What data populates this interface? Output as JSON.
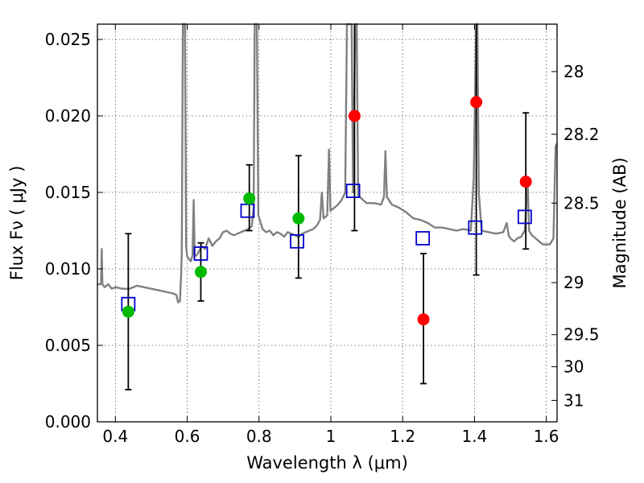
{
  "chart_data": {
    "type": "scatter",
    "title": "",
    "xlabel": "Wavelength  λ (μm)",
    "ylabel": "Flux  Fν  ( μJy )",
    "ylabel_right": "Magnitude (AB)",
    "xlim": [
      0.35,
      1.63
    ],
    "ylim": [
      0.0,
      0.026
    ],
    "grid": true,
    "x_ticks": [
      0.4,
      0.6,
      0.8,
      1.0,
      1.2,
      1.4,
      1.6
    ],
    "x_tick_labels": [
      "0.4",
      "0.6",
      "0.8",
      "1",
      "1.2",
      "1.4",
      "1.6"
    ],
    "y_ticks": [
      0.0,
      0.005,
      0.01,
      0.015,
      0.02,
      0.025
    ],
    "y_tick_labels": [
      "0.000",
      "0.005",
      "0.010",
      "0.015",
      "0.020",
      "0.025"
    ],
    "right_ticks": [
      {
        "label": "28",
        "flux": 0.0229
      },
      {
        "label": "28.2",
        "flux": 0.0188
      },
      {
        "label": "28.5",
        "flux": 0.0143
      },
      {
        "label": "29",
        "flux": 0.0091
      },
      {
        "label": "29.5",
        "flux": 0.0057
      },
      {
        "label": "30",
        "flux": 0.0036
      },
      {
        "label": "31",
        "flux": 0.0014
      }
    ],
    "colors": {
      "spectrum": "#808080",
      "model": "#0000cc",
      "green": "#00bb00",
      "red": "#ff0000",
      "errorbar": "#000000",
      "grid": "#555555"
    },
    "series": [
      {
        "role": "spectrum",
        "points": [
          [
            0.35,
            0.009
          ],
          [
            0.36,
            0.009
          ],
          [
            0.362,
            0.0113
          ],
          [
            0.364,
            0.009
          ],
          [
            0.37,
            0.0088
          ],
          [
            0.38,
            0.009
          ],
          [
            0.39,
            0.0087
          ],
          [
            0.4,
            0.0088
          ],
          [
            0.42,
            0.0087
          ],
          [
            0.44,
            0.0087
          ],
          [
            0.46,
            0.0089
          ],
          [
            0.48,
            0.0088
          ],
          [
            0.5,
            0.0087
          ],
          [
            0.52,
            0.0086
          ],
          [
            0.54,
            0.0085
          ],
          [
            0.56,
            0.0084
          ],
          [
            0.57,
            0.0083
          ],
          [
            0.575,
            0.0078
          ],
          [
            0.58,
            0.0079
          ],
          [
            0.583,
            0.0095
          ],
          [
            0.585,
            0.011
          ],
          [
            0.588,
            0.026
          ],
          [
            0.594,
            0.026
          ],
          [
            0.597,
            0.0115
          ],
          [
            0.6,
            0.0108
          ],
          [
            0.61,
            0.0105
          ],
          [
            0.615,
            0.0109
          ],
          [
            0.618,
            0.0145
          ],
          [
            0.621,
            0.0108
          ],
          [
            0.63,
            0.011
          ],
          [
            0.64,
            0.0115
          ],
          [
            0.65,
            0.0113
          ],
          [
            0.66,
            0.012
          ],
          [
            0.67,
            0.0115
          ],
          [
            0.68,
            0.0118
          ],
          [
            0.69,
            0.012
          ],
          [
            0.7,
            0.0124
          ],
          [
            0.71,
            0.0125
          ],
          [
            0.72,
            0.0123
          ],
          [
            0.73,
            0.0122
          ],
          [
            0.74,
            0.0123
          ],
          [
            0.75,
            0.0124
          ],
          [
            0.76,
            0.0125
          ],
          [
            0.77,
            0.0126
          ],
          [
            0.78,
            0.0128
          ],
          [
            0.785,
            0.014
          ],
          [
            0.788,
            0.026
          ],
          [
            0.794,
            0.026
          ],
          [
            0.798,
            0.0135
          ],
          [
            0.81,
            0.0126
          ],
          [
            0.82,
            0.0124
          ],
          [
            0.83,
            0.0125
          ],
          [
            0.84,
            0.0122
          ],
          [
            0.85,
            0.0124
          ],
          [
            0.86,
            0.0123
          ],
          [
            0.87,
            0.0121
          ],
          [
            0.88,
            0.0124
          ],
          [
            0.89,
            0.0123
          ],
          [
            0.9,
            0.0122
          ],
          [
            0.91,
            0.0121
          ],
          [
            0.92,
            0.0123
          ],
          [
            0.93,
            0.0124
          ],
          [
            0.94,
            0.0125
          ],
          [
            0.95,
            0.0126
          ],
          [
            0.96,
            0.0128
          ],
          [
            0.97,
            0.0132
          ],
          [
            0.975,
            0.015
          ],
          [
            0.98,
            0.0133
          ],
          [
            0.99,
            0.0135
          ],
          [
            0.995,
            0.0178
          ],
          [
            0.999,
            0.0138
          ],
          [
            1.01,
            0.014
          ],
          [
            1.02,
            0.0142
          ],
          [
            1.03,
            0.0145
          ],
          [
            1.04,
            0.015
          ],
          [
            1.045,
            0.026
          ],
          [
            1.058,
            0.026
          ],
          [
            1.062,
            0.015
          ],
          [
            1.068,
            0.026
          ],
          [
            1.072,
            0.026
          ],
          [
            1.076,
            0.0148
          ],
          [
            1.09,
            0.0145
          ],
          [
            1.1,
            0.0143
          ],
          [
            1.12,
            0.0143
          ],
          [
            1.14,
            0.0142
          ],
          [
            1.148,
            0.0147
          ],
          [
            1.152,
            0.0177
          ],
          [
            1.156,
            0.0147
          ],
          [
            1.17,
            0.0142
          ],
          [
            1.19,
            0.014
          ],
          [
            1.21,
            0.0137
          ],
          [
            1.23,
            0.0133
          ],
          [
            1.25,
            0.0132
          ],
          [
            1.27,
            0.013
          ],
          [
            1.29,
            0.0127
          ],
          [
            1.31,
            0.0127
          ],
          [
            1.33,
            0.0126
          ],
          [
            1.35,
            0.0125
          ],
          [
            1.37,
            0.0126
          ],
          [
            1.39,
            0.0125
          ],
          [
            1.398,
            0.016
          ],
          [
            1.405,
            0.026
          ],
          [
            1.408,
            0.026
          ],
          [
            1.412,
            0.015
          ],
          [
            1.42,
            0.0125
          ],
          [
            1.44,
            0.0124
          ],
          [
            1.46,
            0.0123
          ],
          [
            1.48,
            0.0124
          ],
          [
            1.49,
            0.013
          ],
          [
            1.495,
            0.0122
          ],
          [
            1.5,
            0.012
          ],
          [
            1.51,
            0.0118
          ],
          [
            1.52,
            0.012
          ],
          [
            1.53,
            0.0121
          ],
          [
            1.54,
            0.0125
          ],
          [
            1.548,
            0.0158
          ],
          [
            1.552,
            0.0125
          ],
          [
            1.56,
            0.0122
          ],
          [
            1.57,
            0.012
          ],
          [
            1.58,
            0.0118
          ],
          [
            1.59,
            0.0116
          ],
          [
            1.6,
            0.0116
          ],
          [
            1.61,
            0.0116
          ],
          [
            1.62,
            0.012
          ],
          [
            1.626,
            0.018
          ],
          [
            1.63,
            0.0182
          ]
        ]
      },
      {
        "role": "model",
        "marker": "open-square",
        "points": [
          {
            "x": 0.436,
            "y": 0.0077
          },
          {
            "x": 0.638,
            "y": 0.011
          },
          {
            "x": 0.768,
            "y": 0.0138
          },
          {
            "x": 0.906,
            "y": 0.0118
          },
          {
            "x": 1.062,
            "y": 0.0151
          },
          {
            "x": 1.256,
            "y": 0.012
          },
          {
            "x": 1.402,
            "y": 0.0127
          },
          {
            "x": 1.54,
            "y": 0.0134
          }
        ]
      },
      {
        "role": "observed",
        "marker": "filled-circle",
        "points": [
          {
            "x": 0.436,
            "y": 0.0072,
            "lo": 0.0021,
            "hi": 0.0123,
            "color": "green"
          },
          {
            "x": 0.638,
            "y": 0.0098,
            "lo": 0.0079,
            "hi": 0.0117,
            "color": "green"
          },
          {
            "x": 0.773,
            "y": 0.0146,
            "lo": 0.0125,
            "hi": 0.0168,
            "color": "green"
          },
          {
            "x": 0.91,
            "y": 0.0133,
            "lo": 0.0094,
            "hi": 0.0174,
            "color": "green"
          },
          {
            "x": 1.066,
            "y": 0.02,
            "lo": 0.0125,
            "hi": 0.026,
            "color": "red"
          },
          {
            "x": 1.258,
            "y": 0.0067,
            "lo": 0.0025,
            "hi": 0.011,
            "color": "red"
          },
          {
            "x": 1.405,
            "y": 0.0209,
            "lo": 0.0096,
            "hi": 0.026,
            "color": "red"
          },
          {
            "x": 1.543,
            "y": 0.0157,
            "lo": 0.0113,
            "hi": 0.0202,
            "color": "red"
          }
        ]
      }
    ]
  }
}
